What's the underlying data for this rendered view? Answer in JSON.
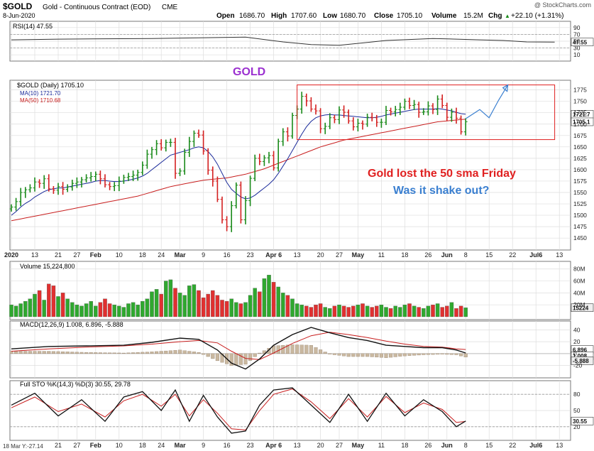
{
  "header": {
    "symbol": "$GOLD",
    "name": "Gold - Continuous Contract (EOD)",
    "exchange": "CME",
    "date": "8-Jun-2020",
    "watermark": "@ StockCharts.com",
    "open_label": "Open",
    "open": "1686.70",
    "high_label": "High",
    "high": "1707.60",
    "low_label": "Low",
    "low": "1680.70",
    "close_label": "Close",
    "close": "1705.10",
    "volume_label": "Volume",
    "volume": "15.2M",
    "chg_label": "Chg",
    "chg": "+22.10 (+1.31%)",
    "chg_arrow": "▲"
  },
  "annotations": {
    "gold_title": "GOLD",
    "line1": "Gold lost the 50 sma Friday",
    "line2": "Was it  shake out?",
    "colors": {
      "gold_title": "#9b30d0",
      "line1": "#e02020",
      "line2": "#3a7fd0"
    }
  },
  "colors": {
    "up_bar": "#1a8a1a",
    "down_bar": "#d42020",
    "ma10": "#1a2a9a",
    "ma50": "#c81e1e",
    "vol_up": "#2fa82f",
    "vol_down": "#e03030",
    "grid": "#dddddd",
    "annotation_box": "#e02020",
    "projection": "#3a7fd0"
  },
  "chart_data": [
    {
      "type": "line",
      "panel": "rsi",
      "legend": "RSI(14) 47.55",
      "yticks": [
        90,
        70,
        50,
        30,
        10
      ],
      "ylim": [
        0,
        100
      ],
      "levels": [
        70,
        30
      ],
      "last_value_label": "47.55",
      "x": [
        0,
        10,
        20,
        30,
        40,
        50,
        58,
        64,
        70,
        80,
        90,
        95,
        100,
        105,
        110,
        116
      ],
      "values": [
        54,
        56,
        57,
        58,
        60,
        62,
        48,
        40,
        38,
        52,
        58,
        56,
        54,
        52,
        48,
        47.55
      ]
    },
    {
      "type": "candlestick",
      "panel": "price",
      "legend": [
        "$GOLD (Daily) 1705.10",
        "MA(10) 1721.70",
        "MA(50) 1710.68"
      ],
      "ylim": [
        1430,
        1790
      ],
      "yticks": [
        1775,
        1750,
        1725,
        1700,
        1675,
        1650,
        1625,
        1600,
        1575,
        1550,
        1525,
        1500,
        1475,
        1450
      ],
      "xtick_labels": [
        "2020",
        "13",
        "21",
        "27",
        "Feb",
        "10",
        "18",
        "24",
        "Mar",
        "9",
        "16",
        "23",
        "Apr 6",
        "13",
        "20",
        "27",
        "May",
        "11",
        "18",
        "26",
        "Jun",
        "8",
        "15",
        "22",
        "Jul6",
        "13"
      ],
      "xtick_days": [
        0,
        5,
        10,
        14,
        18,
        23,
        28,
        32,
        36,
        41,
        46,
        51,
        56,
        61,
        66,
        70,
        74,
        79,
        84,
        89,
        93,
        97,
        102,
        107,
        112,
        117
      ],
      "price_labels": {
        "ma10": "1721.7",
        "close": "1705.1"
      },
      "x": [
        0,
        1,
        2,
        3,
        4,
        5,
        6,
        7,
        8,
        9,
        10,
        11,
        12,
        13,
        14,
        15,
        16,
        17,
        18,
        19,
        20,
        21,
        22,
        23,
        24,
        25,
        26,
        27,
        28,
        29,
        30,
        31,
        32,
        33,
        34,
        35,
        36,
        37,
        38,
        39,
        40,
        41,
        42,
        43,
        44,
        45,
        46,
        47,
        48,
        49,
        50,
        51,
        52,
        53,
        54,
        55,
        56,
        57,
        58,
        59,
        60,
        61,
        62,
        63,
        64,
        65,
        66,
        67,
        68,
        69,
        70,
        71,
        72,
        73,
        74,
        75,
        76,
        77,
        78,
        79,
        80,
        81,
        82,
        83,
        84,
        85,
        86,
        87,
        88,
        89,
        90,
        91,
        92,
        93,
        94,
        95,
        96,
        97
      ],
      "close": [
        1518,
        1530,
        1550,
        1556,
        1560,
        1573,
        1570,
        1580,
        1558,
        1555,
        1563,
        1557,
        1562,
        1570,
        1573,
        1578,
        1582,
        1585,
        1590,
        1580,
        1567,
        1563,
        1565,
        1575,
        1583,
        1585,
        1588,
        1594,
        1610,
        1634,
        1644,
        1657,
        1648,
        1660,
        1660,
        1592,
        1597,
        1638,
        1662,
        1680,
        1676,
        1641,
        1599,
        1575,
        1535,
        1490,
        1475,
        1521,
        1566,
        1490,
        1532,
        1581,
        1625,
        1618,
        1626,
        1631,
        1604,
        1662,
        1683,
        1674,
        1719,
        1733,
        1761,
        1751,
        1733,
        1729,
        1690,
        1695,
        1714,
        1710,
        1731,
        1726,
        1707,
        1694,
        1702,
        1700,
        1715,
        1714,
        1704,
        1704,
        1730,
        1727,
        1732,
        1737,
        1750,
        1741,
        1743,
        1726,
        1727,
        1740,
        1732,
        1755,
        1741,
        1715,
        1726,
        1713,
        1683,
        1705.1
      ],
      "ma10": [
        1500,
        1508,
        1518,
        1526,
        1532,
        1540,
        1546,
        1552,
        1556,
        1558,
        1560,
        1560,
        1562,
        1564,
        1566,
        1568,
        1570,
        1572,
        1575,
        1576,
        1576,
        1575,
        1574,
        1574,
        1575,
        1577,
        1579,
        1582,
        1586,
        1592,
        1600,
        1608,
        1616,
        1624,
        1632,
        1635,
        1638,
        1641,
        1644,
        1648,
        1650,
        1648,
        1640,
        1628,
        1612,
        1592,
        1572,
        1557,
        1548,
        1540,
        1536,
        1538,
        1544,
        1552,
        1560,
        1568,
        1578,
        1592,
        1608,
        1624,
        1642,
        1660,
        1678,
        1694,
        1706,
        1714,
        1718,
        1720,
        1721,
        1720,
        1720,
        1719,
        1718,
        1717,
        1716,
        1715,
        1714,
        1714,
        1715,
        1717,
        1720,
        1722,
        1724,
        1726,
        1728,
        1730,
        1732,
        1733,
        1733,
        1733,
        1733,
        1734,
        1733,
        1731,
        1729,
        1726,
        1723,
        1721.7
      ],
      "ma50": [
        1488,
        1490,
        1492,
        1494,
        1496,
        1498,
        1500,
        1502,
        1504,
        1506,
        1508,
        1510,
        1512,
        1514,
        1516,
        1518,
        1520,
        1522,
        1524,
        1526,
        1528,
        1530,
        1532,
        1534,
        1536,
        1538,
        1540,
        1542,
        1545,
        1548,
        1551,
        1554,
        1557,
        1560,
        1563,
        1565,
        1567,
        1569,
        1571,
        1573,
        1575,
        1577,
        1578,
        1579,
        1580,
        1581,
        1582,
        1584,
        1586,
        1588,
        1590,
        1593,
        1596,
        1599,
        1602,
        1606,
        1610,
        1614,
        1618,
        1622,
        1626,
        1630,
        1634,
        1638,
        1642,
        1646,
        1650,
        1653,
        1656,
        1659,
        1662,
        1665,
        1667,
        1669,
        1671,
        1673,
        1675,
        1677,
        1679,
        1681,
        1683,
        1685,
        1687,
        1689,
        1691,
        1693,
        1695,
        1697,
        1699,
        1701,
        1703,
        1705,
        1706,
        1707,
        1708,
        1709,
        1710,
        1710.68
      ],
      "annotation_box": {
        "x0": 61,
        "x1": 116,
        "y_top": 1786,
        "y_bottom": 1666
      },
      "projection": [
        [
          97,
          1712
        ],
        [
          100,
          1732
        ],
        [
          102,
          1714
        ],
        [
          104,
          1752
        ],
        [
          106,
          1786
        ]
      ]
    },
    {
      "type": "bar",
      "panel": "volume",
      "legend": "Volume 15,224,800",
      "yticks": [
        "80M",
        "60M",
        "40M",
        "20M"
      ],
      "ytick_values": [
        80,
        60,
        40,
        20
      ],
      "last_value_label": "15224",
      "ylim": [
        0,
        88
      ],
      "x": [
        0,
        1,
        2,
        3,
        4,
        5,
        6,
        7,
        8,
        9,
        10,
        11,
        12,
        13,
        14,
        15,
        16,
        17,
        18,
        19,
        20,
        21,
        22,
        23,
        24,
        25,
        26,
        27,
        28,
        29,
        30,
        31,
        32,
        33,
        34,
        35,
        36,
        37,
        38,
        39,
        40,
        41,
        42,
        43,
        44,
        45,
        46,
        47,
        48,
        49,
        50,
        51,
        52,
        53,
        54,
        55,
        56,
        57,
        58,
        59,
        60,
        61,
        62,
        63,
        64,
        65,
        66,
        67,
        68,
        69,
        70,
        71,
        72,
        73,
        74,
        75,
        76,
        77,
        78,
        79,
        80,
        81,
        82,
        83,
        84,
        85,
        86,
        87,
        88,
        89,
        90,
        91,
        92,
        93,
        94,
        95,
        96,
        97
      ],
      "values": [
        20,
        18,
        22,
        26,
        30,
        38,
        44,
        28,
        55,
        52,
        34,
        40,
        30,
        24,
        20,
        18,
        22,
        26,
        18,
        24,
        30,
        22,
        20,
        18,
        16,
        22,
        24,
        20,
        26,
        30,
        42,
        46,
        38,
        60,
        62,
        48,
        40,
        36,
        52,
        54,
        44,
        32,
        38,
        44,
        36,
        28,
        26,
        30,
        24,
        22,
        24,
        36,
        48,
        42,
        64,
        70,
        58,
        50,
        40,
        36,
        30,
        22,
        20,
        18,
        16,
        20,
        22,
        16,
        14,
        18,
        20,
        18,
        16,
        18,
        20,
        22,
        18,
        16,
        18,
        20,
        16,
        14,
        18,
        16,
        20,
        22,
        18,
        16,
        14,
        18,
        20,
        22,
        16,
        18,
        24,
        14,
        18,
        15.2
      ],
      "colors_by_bar": "up=green, down=red"
    },
    {
      "type": "line",
      "panel": "macd",
      "legend": "MACD(12,26,9) 1.008, 6.896, -5.888",
      "yticks": [
        40,
        20,
        0,
        -20
      ],
      "ylim": [
        -36,
        50
      ],
      "last_value_labels": [
        "6.896",
        "1.008",
        "-5.888"
      ],
      "x": [
        0,
        8,
        16,
        24,
        30,
        36,
        40,
        44,
        47,
        50,
        53,
        56,
        60,
        64,
        68,
        72,
        76,
        80,
        84,
        88,
        92,
        95,
        97
      ],
      "series": [
        {
          "values": [
            8,
            12,
            13,
            14,
            19,
            26,
            24,
            6,
            -16,
            -26,
            -9,
            14,
            32,
            44,
            35,
            27,
            22,
            14,
            12,
            10,
            10,
            6,
            1.008
          ]
        },
        {
          "values": [
            4,
            8,
            11,
            13,
            16,
            20,
            22,
            18,
            4,
            -8,
            -10,
            1,
            17,
            30,
            36,
            32,
            27,
            21,
            16,
            12,
            11,
            8,
            6.896
          ]
        }
      ],
      "histogram": [
        4,
        4,
        2,
        1,
        3,
        6,
        2,
        -12,
        -20,
        -18,
        1,
        13,
        15,
        14,
        -1,
        -5,
        -5,
        -7,
        -4,
        -2,
        -1,
        -2,
        -5.888
      ]
    },
    {
      "type": "line",
      "panel": "stochastic",
      "legend": "Full STO %K(14,3) %D(3) 30.55, 29.78",
      "yticks": [
        80,
        50,
        20
      ],
      "ylim": [
        0,
        100
      ],
      "levels": [
        80,
        20
      ],
      "last_value_label": "30.55",
      "x": [
        0,
        5,
        10,
        15,
        20,
        24,
        28,
        32,
        35,
        38,
        41,
        44,
        47,
        50,
        53,
        56,
        60,
        64,
        68,
        72,
        76,
        80,
        84,
        88,
        92,
        95,
        97
      ],
      "series": [
        {
          "values": [
            60,
            82,
            40,
            70,
            30,
            75,
            85,
            50,
            88,
            30,
            78,
            38,
            8,
            12,
            60,
            88,
            92,
            60,
            28,
            80,
            30,
            82,
            40,
            70,
            48,
            20,
            30.55
          ]
        },
        {
          "values": [
            55,
            75,
            48,
            62,
            38,
            68,
            80,
            58,
            80,
            40,
            70,
            45,
            16,
            14,
            50,
            80,
            90,
            66,
            35,
            72,
            38,
            76,
            46,
            64,
            52,
            28,
            29.78
          ]
        }
      ],
      "xtick_labels": [
        "21",
        "27",
        "Feb",
        "10",
        "18",
        "24",
        "Mar",
        "9",
        "16",
        "23",
        "Apr 6",
        "13",
        "20",
        "27",
        "May",
        "11",
        "18",
        "26",
        "Jun",
        "8",
        "15",
        "22",
        "Jul6",
        "13"
      ],
      "xtick_days": [
        10,
        14,
        18,
        23,
        28,
        32,
        36,
        41,
        46,
        51,
        56,
        61,
        66,
        70,
        74,
        79,
        84,
        89,
        93,
        97,
        102,
        107,
        112,
        117
      ],
      "cursor_readout": "18 Mar Y:-27.14"
    }
  ]
}
